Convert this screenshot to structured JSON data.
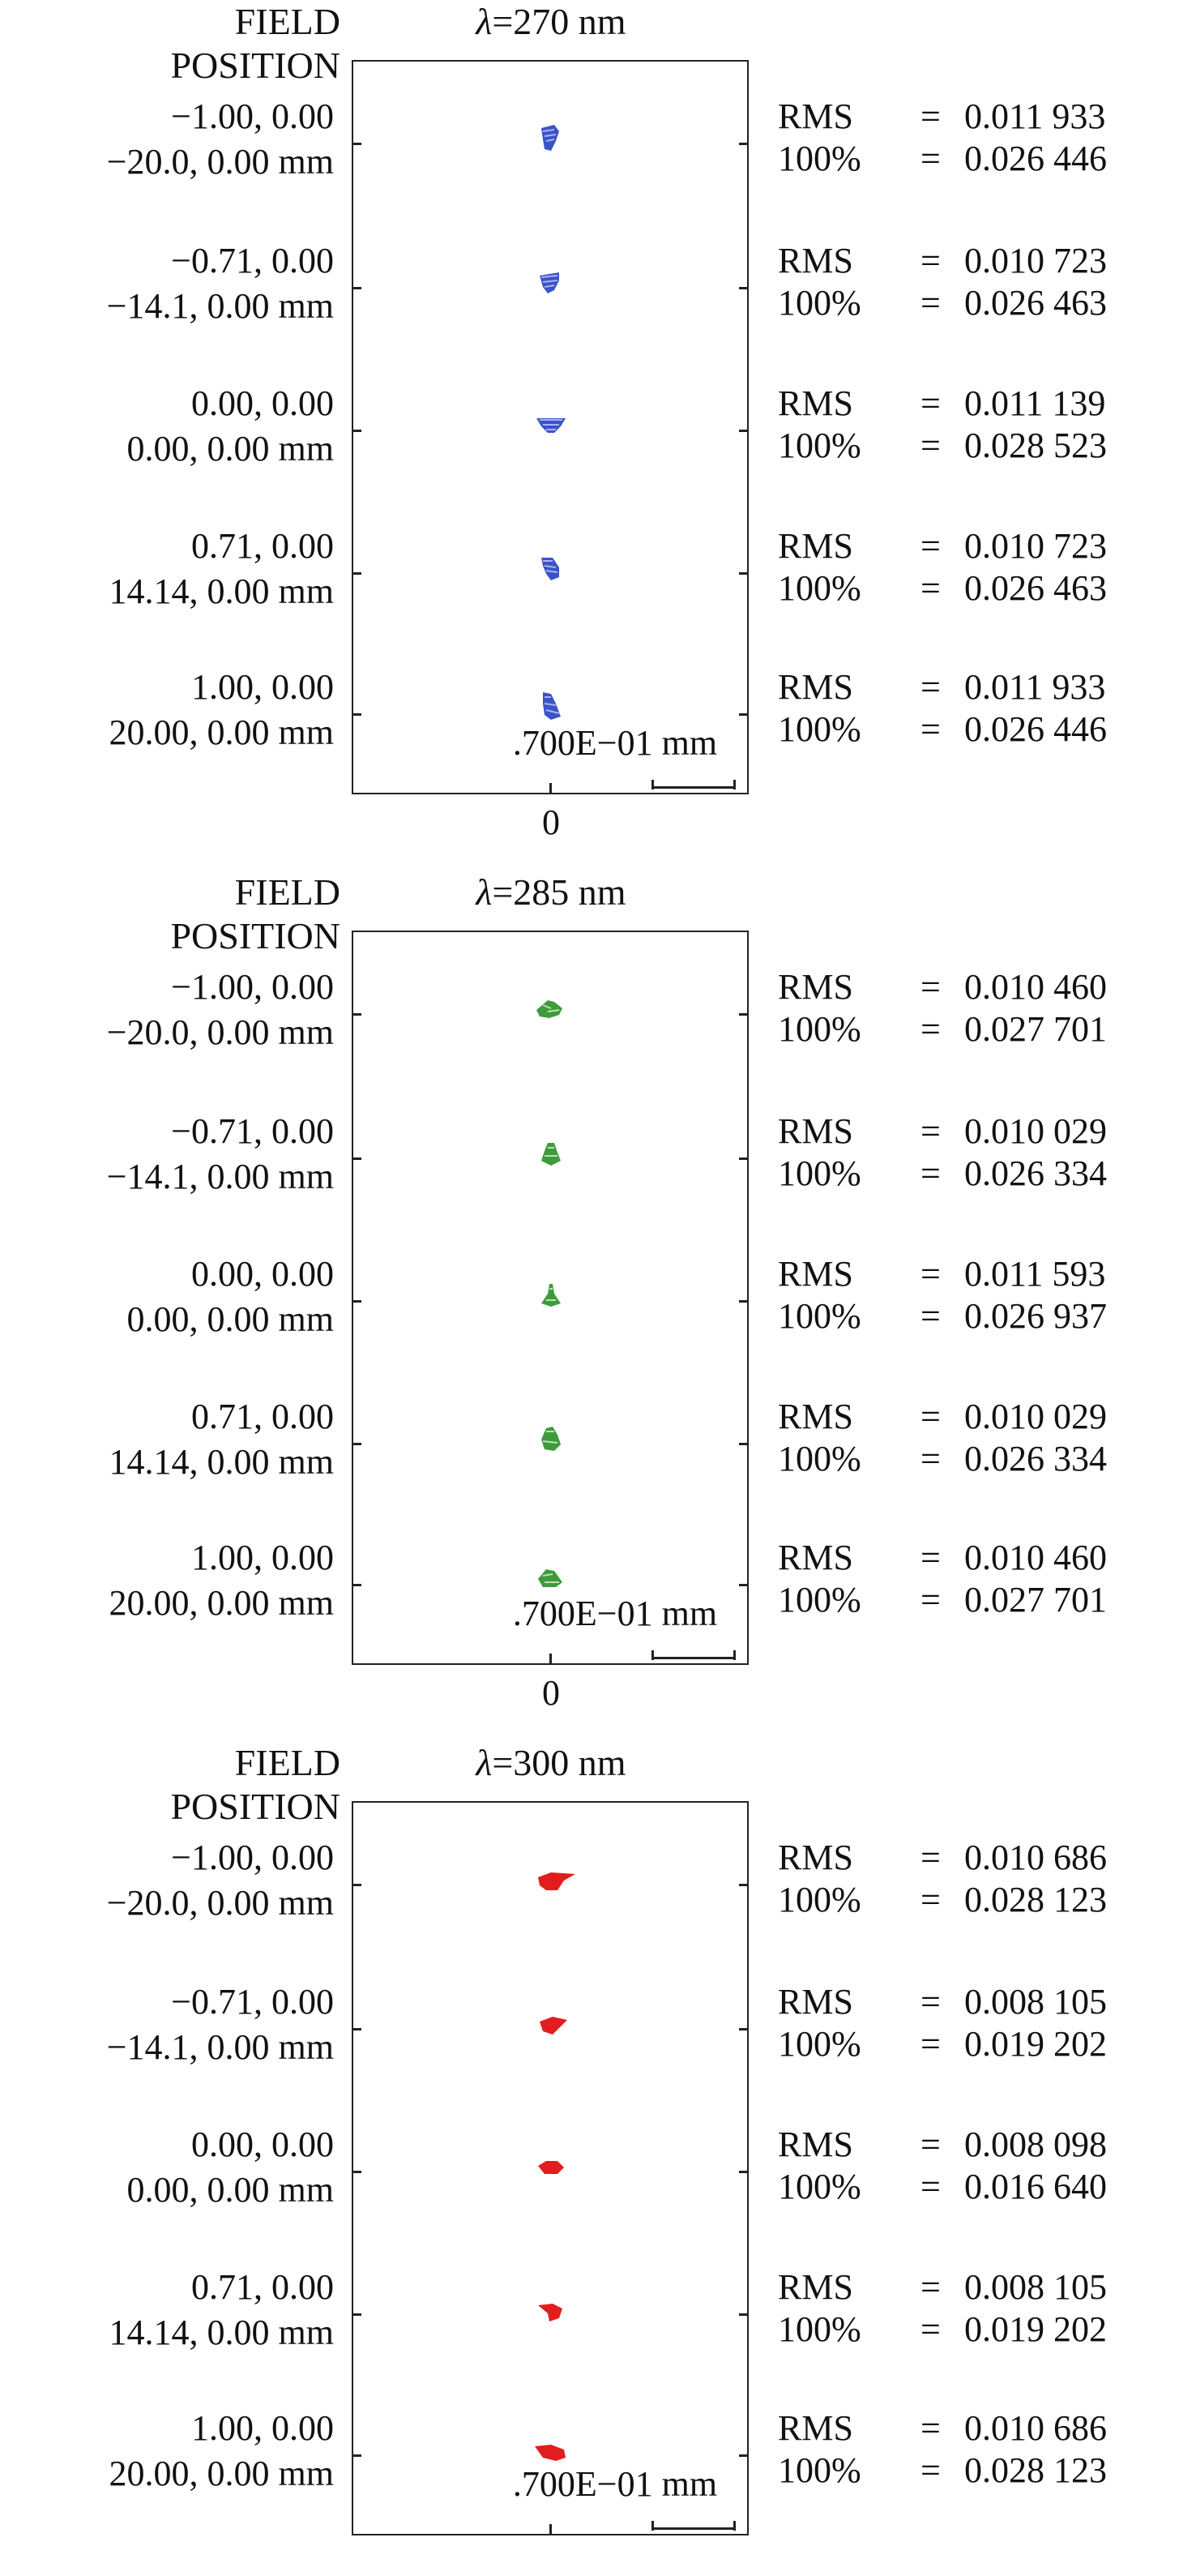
{
  "colors": {
    "panel0": "#3b53c9",
    "panel1": "#3f9a3a",
    "panel2": "#e11d1d"
  },
  "panels": [
    {
      "header_line1": "FIELD",
      "header_line2": "POSITION",
      "lambda_symbol": "λ",
      "wavelength": "=270 nm",
      "scale": ".700E−01 mm",
      "axis_zero": "0",
      "fields": [
        {
          "label_line1": "−1.00, 0.00",
          "label_line2": "−20.0, 0.00 mm",
          "rms": "0.011 933",
          "hundred": "0.026 446"
        },
        {
          "label_line1": "−0.71, 0.00",
          "label_line2": "−14.1, 0.00 mm",
          "rms": "0.010 723",
          "hundred": "0.026 463"
        },
        {
          "label_line1": "0.00, 0.00",
          "label_line2": "0.00, 0.00 mm",
          "rms": "0.011 139",
          "hundred": "0.028 523"
        },
        {
          "label_line1": "0.71, 0.00",
          "label_line2": "14.14, 0.00 mm",
          "rms": "0.010 723",
          "hundred": "0.026 463"
        },
        {
          "label_line1": "1.00, 0.00",
          "label_line2": "20.00, 0.00 mm",
          "rms": "0.011 933",
          "hundred": "0.026 446"
        }
      ]
    },
    {
      "header_line1": "FIELD",
      "header_line2": "POSITION",
      "lambda_symbol": "λ",
      "wavelength": "=285 nm",
      "scale": ".700E−01 mm",
      "axis_zero": "0",
      "fields": [
        {
          "label_line1": "−1.00, 0.00",
          "label_line2": "−20.0, 0.00 mm",
          "rms": "0.010 460",
          "hundred": "0.027 701"
        },
        {
          "label_line1": "−0.71, 0.00",
          "label_line2": "−14.1, 0.00 mm",
          "rms": "0.010 029",
          "hundred": "0.026 334"
        },
        {
          "label_line1": "0.00, 0.00",
          "label_line2": "0.00, 0.00 mm",
          "rms": "0.011 593",
          "hundred": "0.026 937"
        },
        {
          "label_line1": "0.71, 0.00",
          "label_line2": "14.14, 0.00 mm",
          "rms": "0.010 029",
          "hundred": "0.026 334"
        },
        {
          "label_line1": "1.00, 0.00",
          "label_line2": "20.00, 0.00 mm",
          "rms": "0.010 460",
          "hundred": "0.027 701"
        }
      ]
    },
    {
      "header_line1": "FIELD",
      "header_line2": "POSITION",
      "lambda_symbol": "λ",
      "wavelength": "=300 nm",
      "scale": ".700E−01 mm",
      "axis_zero": "",
      "fields": [
        {
          "label_line1": "−1.00, 0.00",
          "label_line2": "−20.0, 0.00 mm",
          "rms": "0.010 686",
          "hundred": "0.028 123"
        },
        {
          "label_line1": "−0.71, 0.00",
          "label_line2": "−14.1, 0.00 mm",
          "rms": "0.008 105",
          "hundred": "0.019 202"
        },
        {
          "label_line1": "0.00, 0.00",
          "label_line2": "0.00, 0.00 mm",
          "rms": "0.008 098",
          "hundred": "0.016 640"
        },
        {
          "label_line1": "0.71, 0.00",
          "label_line2": "14.14, 0.00 mm",
          "rms": "0.008 105",
          "hundred": "0.019 202"
        },
        {
          "label_line1": "1.00, 0.00",
          "label_line2": "20.00, 0.00 mm",
          "rms": "0.010 686",
          "hundred": "0.028 123"
        }
      ]
    }
  ],
  "stat_labels": {
    "rms": "RMS",
    "hundred": "100%",
    "equals": "="
  }
}
